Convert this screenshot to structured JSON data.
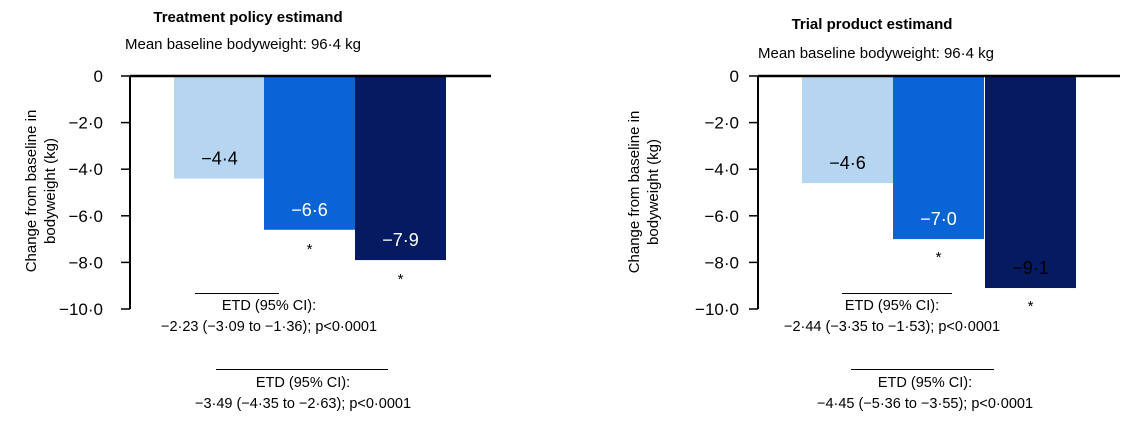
{
  "chart_data": [
    {
      "type": "bar",
      "title": "Treatment policy estimand",
      "subtitle": "Mean baseline bodyweight: 96·4 kg",
      "ylabel_lines": [
        "Change from baseline in",
        "bodyweight (kg)"
      ],
      "ylim": [
        -10,
        0
      ],
      "yticks": [
        0,
        -2,
        -4,
        -6,
        -8,
        -10
      ],
      "ytick_labels": [
        "0",
        "−2·0",
        "−4·0",
        "−6·0",
        "−8·0",
        "−10·0"
      ],
      "values": [
        -4.4,
        -6.6,
        -7.9
      ],
      "value_labels": [
        "−4·4",
        "−6·6",
        "−7·9"
      ],
      "colors": [
        "#b5d5f0",
        "#0a64d6",
        "#051a60"
      ],
      "label_colors": [
        "#000000",
        "#ffffff",
        "#ffffff"
      ],
      "significance": [
        "",
        "*",
        "*"
      ],
      "grid": false,
      "comparisons": [
        {
          "heading": "ETD (95% CI):",
          "detail": "−2·23 (−3·09 to −1·36); p<0·0001"
        },
        {
          "heading": "ETD (95% CI):",
          "detail": "−3·49 (−4·35 to −2·63); p<0·0001"
        }
      ]
    },
    {
      "type": "bar",
      "title": "Trial product estimand",
      "subtitle": "Mean baseline bodyweight: 96·4 kg",
      "ylabel_lines": [
        "Change from baseline in",
        "bodyweight (kg)"
      ],
      "ylim": [
        -10,
        0
      ],
      "yticks": [
        0,
        -2,
        -4,
        -6,
        -8,
        -10
      ],
      "ytick_labels": [
        "0",
        "−2·0",
        "−4·0",
        "−6·0",
        "−8·0",
        "−10·0"
      ],
      "values": [
        -4.6,
        -7.0,
        -9.1
      ],
      "value_labels": [
        "−4·6",
        "−7·0",
        "−9·1"
      ],
      "colors": [
        "#b5d5f0",
        "#0a64d6",
        "#051a60"
      ],
      "label_colors": [
        "#000000",
        "#ffffff",
        "#000000"
      ],
      "significance": [
        "",
        "*",
        "*"
      ],
      "grid": false,
      "comparisons": [
        {
          "heading": "ETD (95% CI):",
          "detail": "−2·44 (−3·35 to −1·53); p<0·0001"
        },
        {
          "heading": "ETD (95% CI):",
          "detail": "−4·45 (−5·36 to −3·55); p<0·0001"
        }
      ]
    }
  ]
}
